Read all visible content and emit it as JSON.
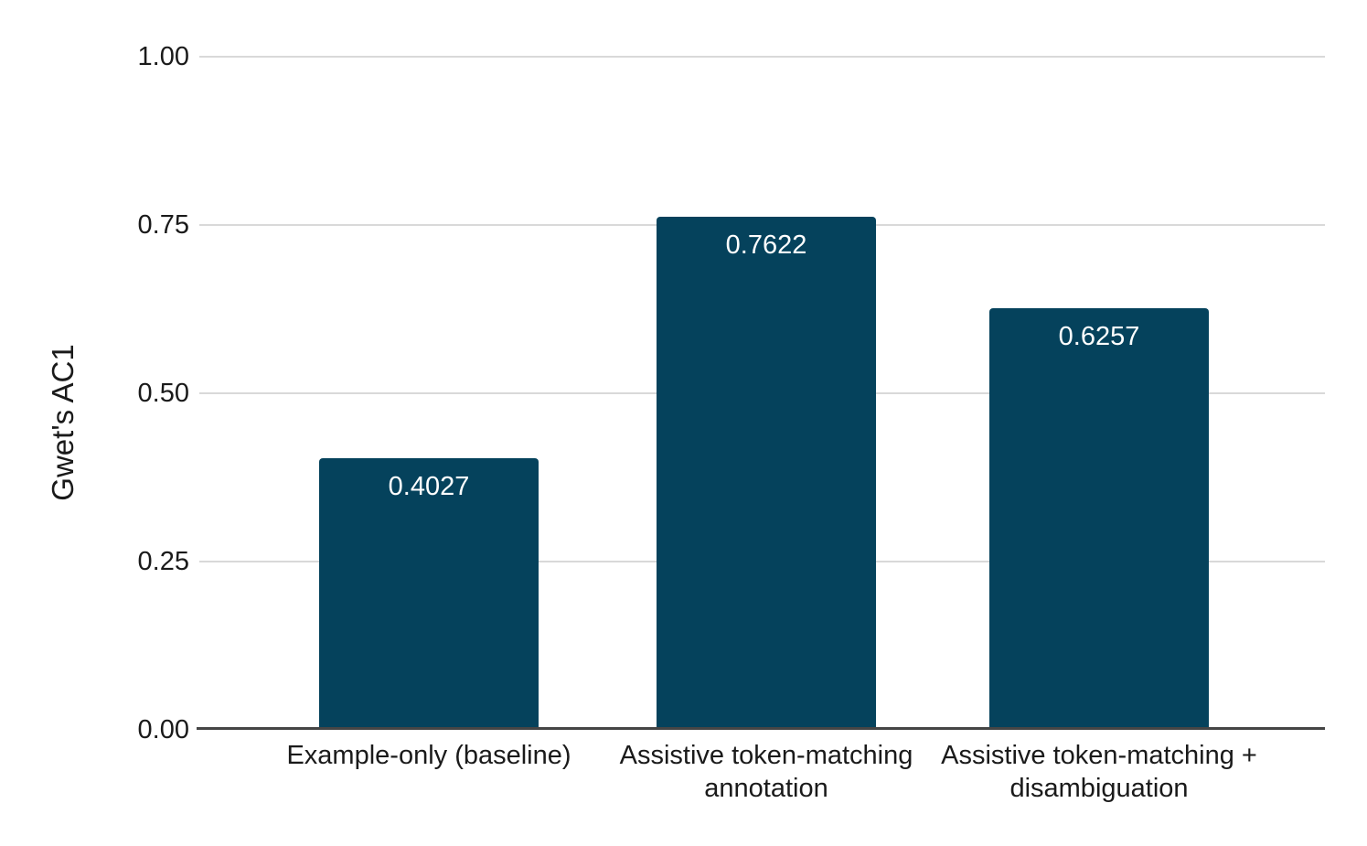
{
  "chart_data": {
    "type": "bar",
    "title": "",
    "xlabel": "",
    "ylabel": "Gwet's AC1",
    "categories": [
      "Example-only (baseline)",
      "Assistive token-matching annotation",
      "Assistive token-matching + disambiguation"
    ],
    "values": [
      0.4027,
      0.7622,
      0.6257
    ],
    "value_labels": [
      "0.4027",
      "0.7622",
      "0.6257"
    ],
    "ylim": [
      0,
      1
    ],
    "yticks": [
      {
        "value": 0.0,
        "label": "0.00"
      },
      {
        "value": 0.25,
        "label": "0.25"
      },
      {
        "value": 0.5,
        "label": "0.50"
      },
      {
        "value": 0.75,
        "label": "0.75"
      },
      {
        "value": 1.0,
        "label": "1.00"
      }
    ],
    "grid": "horizontal",
    "legend": "none",
    "colors": {
      "bar": "#05425c",
      "value_label": "#ffffff",
      "gridline": "#d9d9d9",
      "axis_line": "#454545",
      "text": "#1a1a1a",
      "background": "#ffffff"
    }
  }
}
